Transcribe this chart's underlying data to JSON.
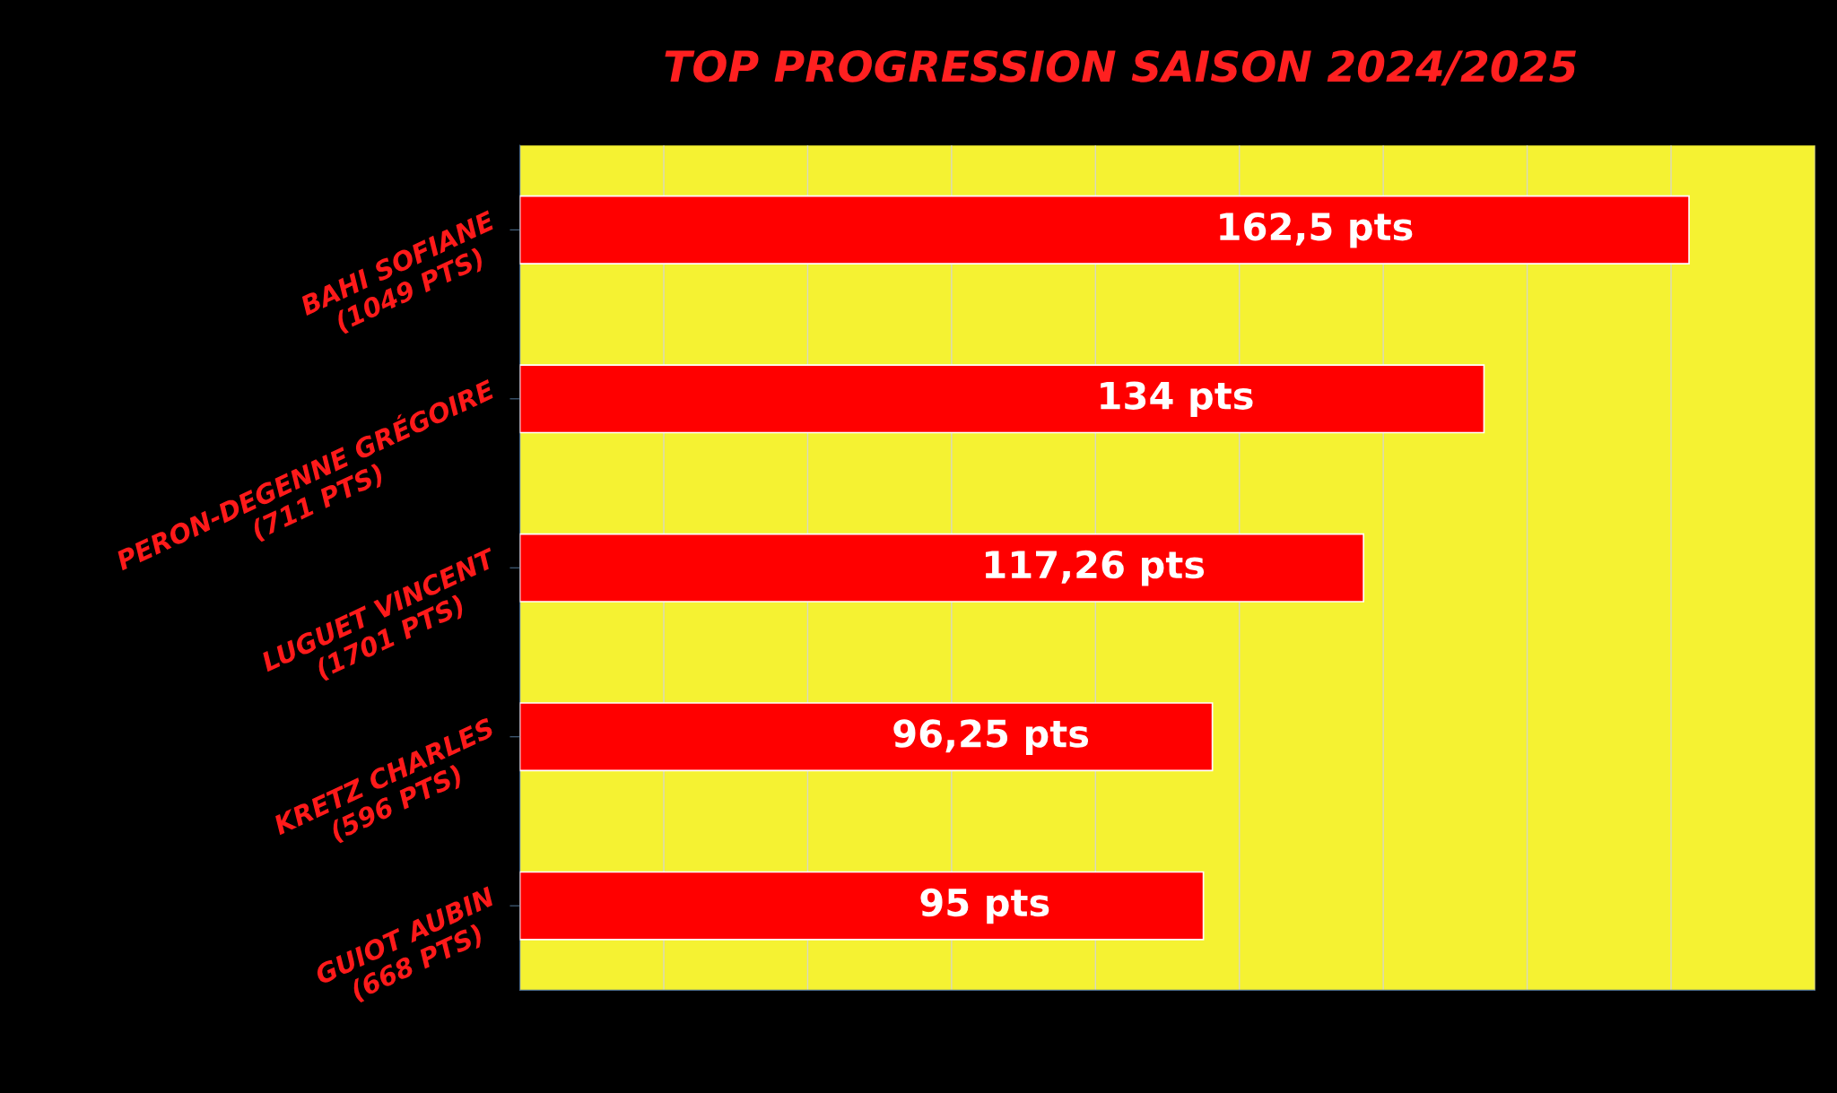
{
  "chart_data": {
    "type": "bar",
    "orientation": "horizontal",
    "title": "TOP PROGRESSION SAISON 2024/2025",
    "categories": [
      "BAHI SOFIANE\n(1049 PTS)",
      "PERON-DEGENNE GRÉGOIRE\n(711 PTS)",
      "LUGUET VINCENT\n(1701 PTS)",
      "KRETZ CHARLES\n(596 PTS)",
      "GUIOT AUBIN\n(668 PTS)"
    ],
    "values": [
      162.5,
      134,
      117.26,
      96.25,
      95
    ],
    "value_labels": [
      "162,5 pts",
      "134 pts",
      "117,26 pts",
      "96,25 pts",
      "95 pts"
    ],
    "color": "#ff0000",
    "xlim": [
      0,
      180
    ],
    "xticks": [
      {
        "value": 0,
        "label": null
      },
      {
        "value": 20,
        "label": null
      },
      {
        "value": 40,
        "label": null
      },
      {
        "value": 60,
        "label": null
      },
      {
        "value": 80,
        "label": null
      },
      {
        "value": 100,
        "label": null
      },
      {
        "value": 120,
        "label": null
      },
      {
        "value": 140,
        "label": null
      },
      {
        "value": 160,
        "label": null
      },
      {
        "value": 180,
        "label": null
      }
    ],
    "grid": "x",
    "tick_labels": "y"
  }
}
